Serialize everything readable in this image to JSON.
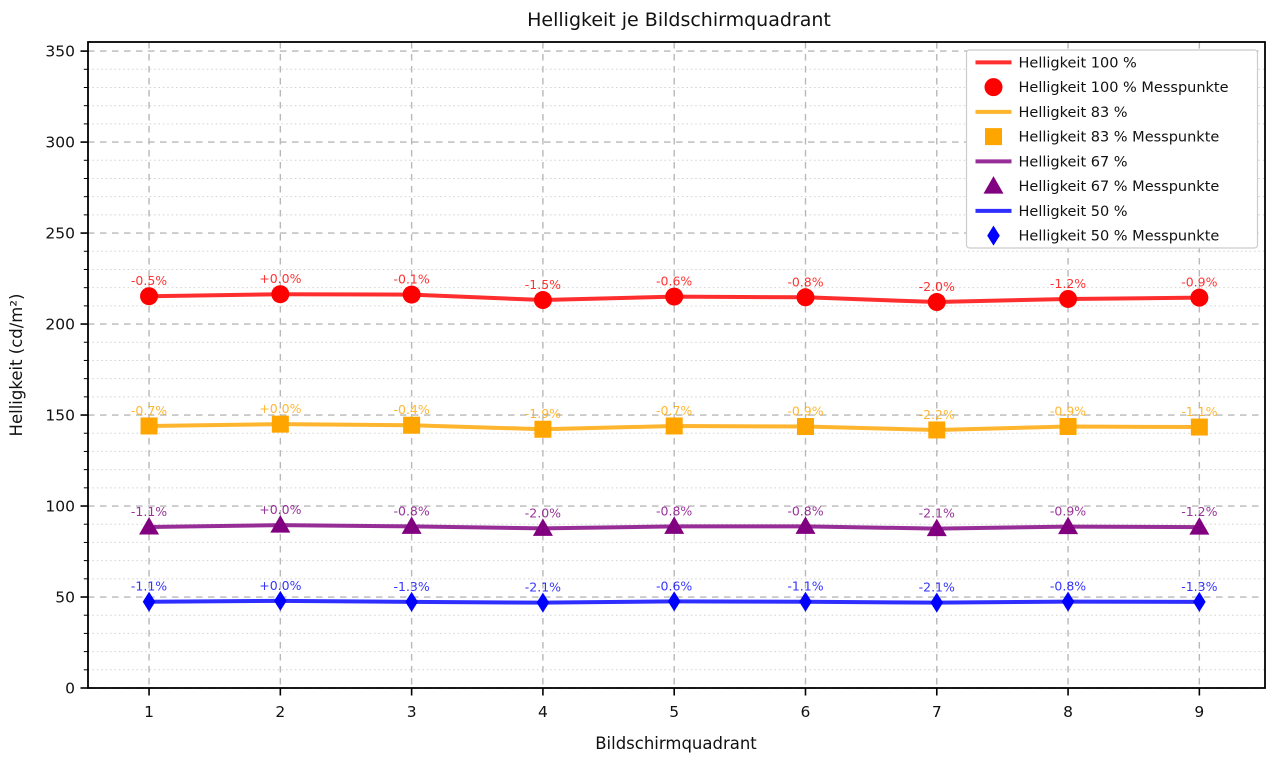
{
  "chart_data": {
    "type": "line",
    "title": "Helligkeit je Bildschirmquadrant",
    "xlabel": "Bildschirmquadrant",
    "ylabel": "Helligkeit (cd/m²)",
    "x": [
      1,
      2,
      3,
      4,
      5,
      6,
      7,
      8,
      9
    ],
    "xticks": [
      1,
      2,
      3,
      4,
      5,
      6,
      7,
      8,
      9
    ],
    "yticks": [
      0,
      50,
      100,
      150,
      200,
      250,
      300,
      350
    ],
    "y_minor_step": 10,
    "xlim": [
      0.535,
      9.5
    ],
    "ylim": [
      0,
      355
    ],
    "grid": {
      "major_dashed": true,
      "minor_dotted_horizontal": true
    },
    "legend_position": "upper right",
    "colors": {
      "red": "#ff0000",
      "orange": "#ffa500",
      "purple": "#800080",
      "blue": "#0000ff",
      "grid_major": "#b8b8b8",
      "grid_minor": "#d4d4d4",
      "legend_border": "#cccccc"
    },
    "series": [
      {
        "name": "Helligkeit 100 %",
        "line_label": "Helligkeit 100 %",
        "marker_label": "Helligkeit 100 % Messpunkte",
        "color": "#ff0000",
        "marker": "circle",
        "values": [
          215.3,
          216.4,
          216.2,
          213.2,
          215.1,
          214.7,
          212.1,
          213.8,
          214.5
        ],
        "annotations": [
          "-0.5%",
          "+0.0%",
          "-0.1%",
          "-1.5%",
          "-0.6%",
          "-0.8%",
          "-2.0%",
          "-1.2%",
          "-0.9%"
        ]
      },
      {
        "name": "Helligkeit 83 %",
        "line_label": "Helligkeit 83 %",
        "marker_label": "Helligkeit 83 % Messpunkte",
        "color": "#ffa500",
        "marker": "square",
        "values": [
          144.0,
          145.0,
          144.4,
          142.2,
          144.0,
          143.7,
          141.8,
          143.7,
          143.4
        ],
        "annotations": [
          "-0.7%",
          "+0.0%",
          "-0.4%",
          "-1.9%",
          "-0.7%",
          "-0.9%",
          "-2.2%",
          "-0.9%",
          "-1.1%"
        ]
      },
      {
        "name": "Helligkeit 67 %",
        "line_label": "Helligkeit 67 %",
        "marker_label": "Helligkeit 67 % Messpunkte",
        "color": "#800080",
        "marker": "triangle-up",
        "values": [
          88.5,
          89.5,
          88.8,
          87.7,
          88.8,
          88.8,
          87.6,
          88.7,
          88.4
        ],
        "annotations": [
          "-1.1%",
          "+0.0%",
          "-0.8%",
          "-2.0%",
          "-0.8%",
          "-0.8%",
          "-2.1%",
          "-0.9%",
          "-1.2%"
        ]
      },
      {
        "name": "Helligkeit 50 %",
        "line_label": "Helligkeit 50 %",
        "marker_label": "Helligkeit 50 % Messpunkte",
        "color": "#0000ff",
        "marker": "thin-diamond",
        "values": [
          47.4,
          47.9,
          47.3,
          46.9,
          47.6,
          47.4,
          46.9,
          47.5,
          47.3
        ],
        "annotations": [
          "-1.1%",
          "+0.0%",
          "-1.3%",
          "-2.1%",
          "-0.6%",
          "-1.1%",
          "-2.1%",
          "-0.8%",
          "-1.3%"
        ]
      }
    ]
  }
}
